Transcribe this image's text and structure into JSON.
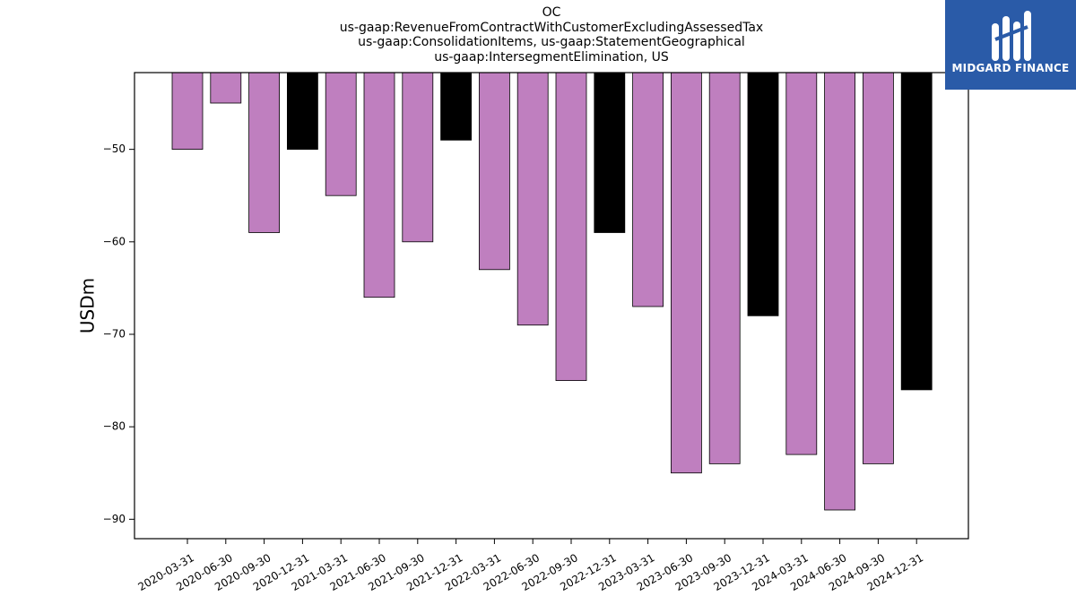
{
  "chart_data": {
    "type": "bar",
    "title_lines": [
      "OC",
      "us-gaap:RevenueFromContractWithCustomerExcludingAssessedTax",
      "us-gaap:ConsolidationItems, us-gaap:StatementGeographical",
      "us-gaap:IntersegmentElimination, US"
    ],
    "ylabel": "USDm",
    "xlabel": "",
    "ylim": [
      -92.1,
      -41.7
    ],
    "yticks": [
      -50,
      -60,
      -70,
      -80,
      -90
    ],
    "categories": [
      "2020-03-31",
      "2020-06-30",
      "2020-09-30",
      "2020-12-31",
      "2021-03-31",
      "2021-06-30",
      "2021-09-30",
      "2021-12-31",
      "2022-03-31",
      "2022-06-30",
      "2022-09-30",
      "2022-12-31",
      "2023-03-31",
      "2023-06-30",
      "2023-09-30",
      "2023-12-31",
      "2024-03-31",
      "2024-06-30",
      "2024-09-30",
      "2024-12-31"
    ],
    "values": [
      -50,
      -45,
      -59,
      -50,
      -55,
      -66,
      -60,
      -49,
      -63,
      -69,
      -75,
      -59,
      -67,
      -85,
      -84,
      -68,
      -83,
      -89,
      -84,
      -76
    ],
    "quarter_end_q4": [
      false,
      false,
      false,
      true,
      false,
      false,
      false,
      true,
      false,
      false,
      false,
      true,
      false,
      false,
      false,
      true,
      false,
      false,
      false,
      true
    ],
    "colors": {
      "regular": "#bf7fbf",
      "q4": "#000000",
      "edge": "#000000"
    },
    "grid": false,
    "legend": "none"
  },
  "logo": {
    "text": "MIDGARD FINANCE",
    "background": "#2a5ba8"
  }
}
